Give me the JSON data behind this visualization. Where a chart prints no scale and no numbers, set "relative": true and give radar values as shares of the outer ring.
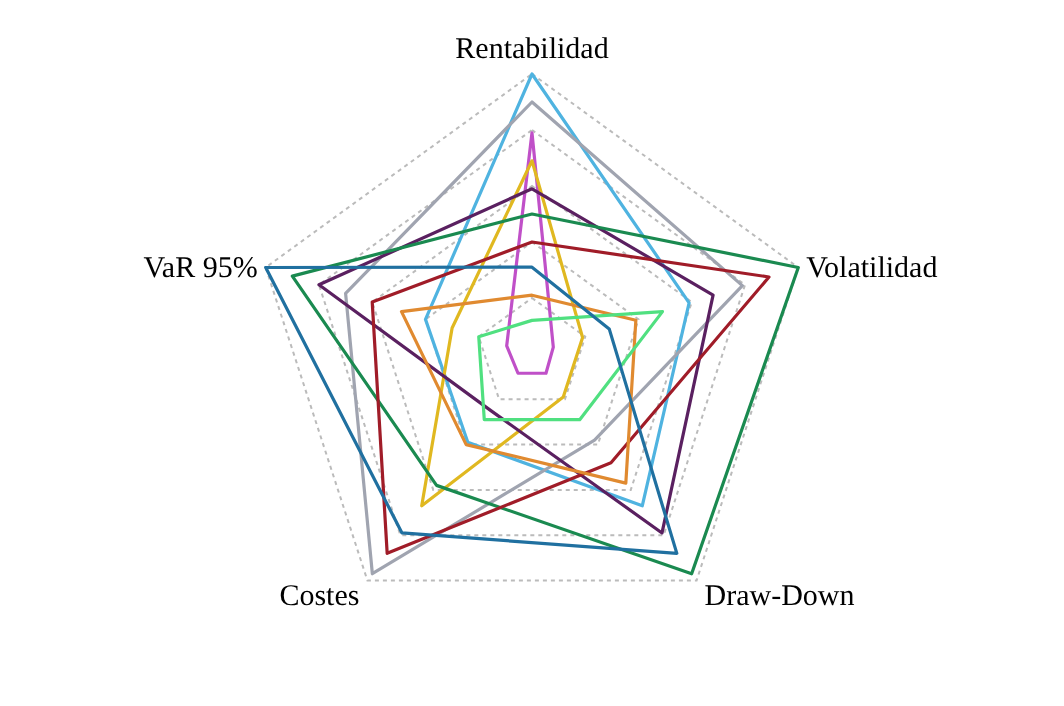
{
  "chart_data": {
    "type": "radar",
    "relative": true,
    "grid": true,
    "line_style": "solid",
    "categories": [
      "Rentabilidad",
      "Volatilidad",
      "Draw-Down",
      "Costes",
      "VaR 95%"
    ],
    "series": [
      {
        "color": "#4fb3e0",
        "values": [
          1.0,
          0.59,
          0.67,
          0.39,
          0.4
        ]
      },
      {
        "color": "#a0a4b0",
        "values": [
          0.9,
          0.79,
          0.38,
          0.97,
          0.7
        ]
      },
      {
        "color": "#c050c8",
        "values": [
          0.79,
          0.08,
          0.085,
          0.085,
          0.095
        ]
      },
      {
        "color": "#e0b820",
        "values": [
          0.69,
          0.19,
          0.19,
          0.67,
          0.3
        ]
      },
      {
        "color": "#5a2060",
        "values": [
          0.59,
          0.68,
          0.79,
          0.25,
          0.8
        ]
      },
      {
        "color": "#1a8a50",
        "values": [
          0.5,
          1.0,
          0.97,
          0.58,
          0.9
        ]
      },
      {
        "color": "#a01c28",
        "values": [
          0.4,
          0.89,
          0.48,
          0.88,
          0.6
        ]
      },
      {
        "color": "#e08a30",
        "values": [
          0.21,
          0.39,
          0.57,
          0.4,
          0.49
        ]
      },
      {
        "color": "#50e080",
        "values": [
          0.12,
          0.49,
          0.29,
          0.29,
          0.2
        ]
      },
      {
        "color": "#2070a0",
        "values": [
          0.31,
          0.29,
          0.88,
          0.79,
          1.0
        ]
      }
    ]
  }
}
